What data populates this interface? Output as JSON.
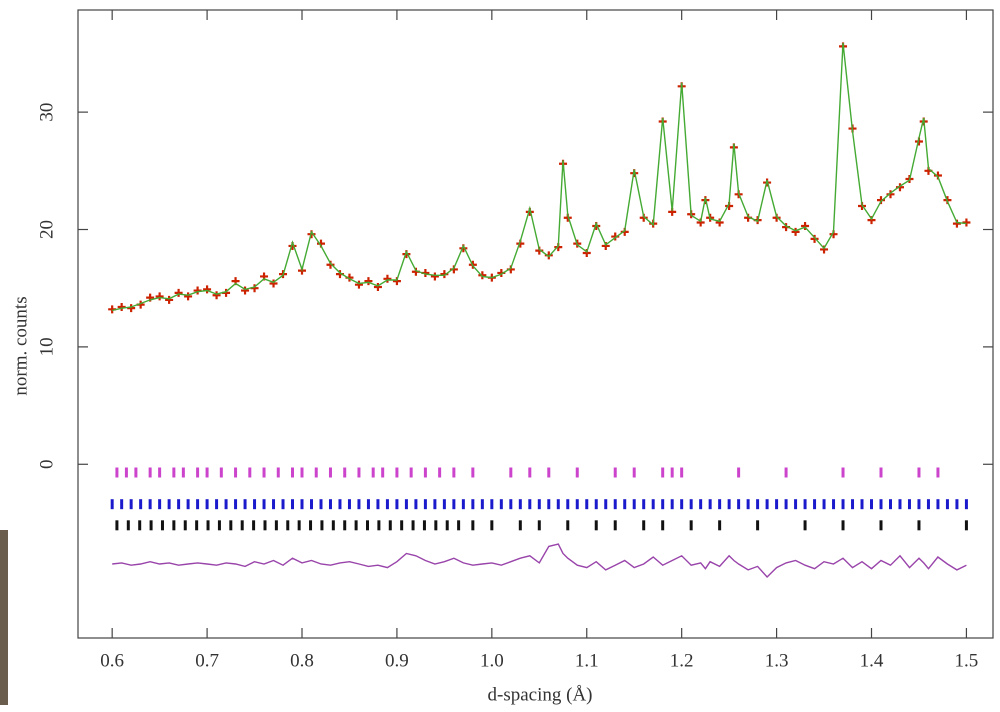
{
  "chart_data": {
    "type": "line",
    "x_label": "d-spacing (Å)",
    "y_label": "norm. counts",
    "xlim": [
      0.564,
      1.528
    ],
    "ylim": [
      -14.8,
      38.7
    ],
    "xticks": [
      0.6,
      0.7,
      0.8,
      0.9,
      {
        "value": 1,
        "label": "1.0"
      },
      1.1,
      1.2,
      1.3,
      1.4,
      1.5
    ],
    "yticks": [
      0,
      10,
      20,
      30
    ],
    "grid": false,
    "x": [
      0.6,
      0.61,
      0.62,
      0.63,
      0.64,
      0.65,
      0.66,
      0.67,
      0.68,
      0.69,
      0.7,
      0.71,
      0.72,
      0.73,
      0.74,
      0.75,
      0.76,
      0.77,
      0.78,
      0.79,
      0.8,
      0.81,
      0.82,
      0.83,
      0.84,
      0.85,
      0.86,
      0.87,
      0.88,
      0.89,
      0.9,
      0.91,
      0.92,
      0.93,
      0.94,
      0.95,
      0.96,
      0.97,
      0.98,
      0.99,
      1.0,
      1.01,
      1.02,
      1.03,
      1.04,
      1.05,
      1.06,
      1.07,
      1.075,
      1.08,
      1.09,
      1.1,
      1.11,
      1.12,
      1.13,
      1.14,
      1.15,
      1.16,
      1.17,
      1.18,
      1.19,
      1.2,
      1.21,
      1.22,
      1.225,
      1.23,
      1.24,
      1.25,
      1.255,
      1.26,
      1.27,
      1.28,
      1.29,
      1.3,
      1.31,
      1.32,
      1.33,
      1.34,
      1.35,
      1.36,
      1.37,
      1.38,
      1.39,
      1.4,
      1.41,
      1.42,
      1.43,
      1.44,
      1.45,
      1.455,
      1.46,
      1.47,
      1.48,
      1.49,
      1.5
    ],
    "series": [
      {
        "style": "points",
        "color": "#cc2200",
        "values": [
          13.2,
          13.4,
          13.3,
          13.6,
          14.2,
          14.3,
          14.0,
          14.6,
          14.3,
          14.8,
          14.9,
          14.4,
          14.6,
          15.6,
          14.8,
          15.0,
          16.0,
          15.4,
          16.2,
          18.6,
          16.5,
          19.6,
          18.8,
          17.0,
          16.2,
          15.9,
          15.3,
          15.6,
          15.1,
          15.8,
          15.6,
          17.9,
          16.4,
          16.3,
          16.0,
          16.2,
          16.6,
          18.4,
          17.0,
          16.1,
          15.9,
          16.3,
          16.6,
          18.8,
          21.5,
          18.2,
          17.8,
          18.5,
          25.6,
          21.0,
          18.8,
          18.0,
          20.3,
          18.6,
          19.4,
          19.8,
          24.8,
          21.0,
          20.5,
          29.2,
          21.5,
          32.2,
          21.3,
          20.6,
          22.5,
          21.0,
          20.6,
          22.0,
          27.0,
          23.0,
          21.0,
          20.8,
          24.0,
          21.0,
          20.2,
          19.8,
          20.3,
          19.2,
          18.3,
          19.6,
          35.6,
          28.6,
          22.0,
          20.8,
          22.5,
          23.0,
          23.6,
          24.3,
          27.5,
          29.2,
          25.0,
          24.6,
          22.5,
          20.5,
          20.6
        ]
      },
      {
        "style": "line",
        "color": "#44aa33",
        "values": [
          13.1,
          13.3,
          13.4,
          13.7,
          14.0,
          14.2,
          14.1,
          14.5,
          14.4,
          14.7,
          14.8,
          14.5,
          14.7,
          15.4,
          14.9,
          15.1,
          15.8,
          15.5,
          16.1,
          18.9,
          16.6,
          19.8,
          18.6,
          17.1,
          16.3,
          15.8,
          15.4,
          15.5,
          15.2,
          15.7,
          15.7,
          18.1,
          16.5,
          16.2,
          16.1,
          16.1,
          16.7,
          18.6,
          16.9,
          16.0,
          15.9,
          16.2,
          16.7,
          19.0,
          21.8,
          18.3,
          17.7,
          18.6,
          25.9,
          21.2,
          18.7,
          18.1,
          20.5,
          18.7,
          19.3,
          19.9,
          25.1,
          21.1,
          20.4,
          29.5,
          21.6,
          32.5,
          21.2,
          20.7,
          22.7,
          20.9,
          20.7,
          22.2,
          27.3,
          23.1,
          21.1,
          20.7,
          24.2,
          21.1,
          20.3,
          19.9,
          20.2,
          19.3,
          18.4,
          19.8,
          35.9,
          28.4,
          22.1,
          20.9,
          22.4,
          23.1,
          23.7,
          24.2,
          27.8,
          29.5,
          25.2,
          24.5,
          22.4,
          20.6,
          20.5
        ]
      },
      {
        "style": "line",
        "color": "#9944aa",
        "values": [
          -8.5,
          -8.4,
          -8.6,
          -8.5,
          -8.3,
          -8.5,
          -8.4,
          -8.6,
          -8.5,
          -8.4,
          -8.5,
          -8.6,
          -8.4,
          -8.5,
          -8.7,
          -8.3,
          -8.5,
          -8.2,
          -8.6,
          -8.0,
          -8.4,
          -8.2,
          -8.5,
          -8.6,
          -8.4,
          -8.3,
          -8.5,
          -8.7,
          -8.6,
          -8.8,
          -8.3,
          -7.6,
          -7.8,
          -8.2,
          -8.5,
          -8.3,
          -8.0,
          -8.4,
          -8.6,
          -8.5,
          -8.4,
          -8.6,
          -8.3,
          -8.0,
          -7.8,
          -8.4,
          -7.0,
          -6.8,
          -7.6,
          -8.0,
          -8.6,
          -8.8,
          -8.3,
          -9.0,
          -8.6,
          -8.2,
          -8.8,
          -8.5,
          -7.9,
          -8.6,
          -8.2,
          -7.8,
          -8.6,
          -8.4,
          -8.9,
          -8.3,
          -8.7,
          -7.8,
          -8.2,
          -8.5,
          -9.0,
          -8.7,
          -9.6,
          -8.8,
          -8.4,
          -8.2,
          -8.6,
          -8.9,
          -8.3,
          -8.5,
          -8.0,
          -8.8,
          -8.3,
          -8.9,
          -8.2,
          -8.6,
          -7.8,
          -8.8,
          -8.0,
          -8.4,
          -8.9,
          -7.9,
          -8.5,
          -9.0,
          -8.6
        ]
      }
    ],
    "reflections": [
      {
        "color": "#cc44cc",
        "y": -0.7,
        "x": [
          0.605,
          0.615,
          0.625,
          0.64,
          0.65,
          0.665,
          0.675,
          0.69,
          0.7,
          0.715,
          0.73,
          0.745,
          0.76,
          0.775,
          0.79,
          0.8,
          0.815,
          0.83,
          0.845,
          0.86,
          0.875,
          0.885,
          0.9,
          0.915,
          0.93,
          0.945,
          0.96,
          0.98,
          1.02,
          1.04,
          1.06,
          1.09,
          1.13,
          1.15,
          1.18,
          1.19,
          1.2,
          1.26,
          1.31,
          1.37,
          1.41,
          1.45,
          1.47
        ]
      },
      {
        "color": "#1a1acc",
        "y": -3.4,
        "x": [
          0.6,
          0.61,
          0.62,
          0.63,
          0.64,
          0.65,
          0.66,
          0.67,
          0.68,
          0.69,
          0.7,
          0.71,
          0.72,
          0.73,
          0.74,
          0.75,
          0.76,
          0.77,
          0.78,
          0.79,
          0.8,
          0.81,
          0.82,
          0.83,
          0.84,
          0.85,
          0.86,
          0.87,
          0.88,
          0.89,
          0.9,
          0.91,
          0.92,
          0.93,
          0.94,
          0.95,
          0.96,
          0.97,
          0.98,
          0.99,
          1.0,
          1.01,
          1.02,
          1.03,
          1.04,
          1.05,
          1.06,
          1.07,
          1.08,
          1.09,
          1.1,
          1.11,
          1.12,
          1.13,
          1.14,
          1.15,
          1.16,
          1.17,
          1.18,
          1.19,
          1.2,
          1.21,
          1.22,
          1.23,
          1.24,
          1.25,
          1.26,
          1.27,
          1.28,
          1.29,
          1.3,
          1.31,
          1.32,
          1.33,
          1.34,
          1.35,
          1.36,
          1.37,
          1.38,
          1.39,
          1.4,
          1.41,
          1.42,
          1.43,
          1.44,
          1.45,
          1.46,
          1.47,
          1.48,
          1.49,
          1.5
        ]
      },
      {
        "color": "#111111",
        "y": -5.2,
        "x": [
          0.605,
          0.617,
          0.629,
          0.641,
          0.653,
          0.665,
          0.677,
          0.689,
          0.701,
          0.713,
          0.725,
          0.737,
          0.749,
          0.761,
          0.773,
          0.785,
          0.797,
          0.809,
          0.821,
          0.833,
          0.845,
          0.857,
          0.869,
          0.881,
          0.893,
          0.905,
          0.917,
          0.929,
          0.941,
          0.953,
          0.965,
          0.98,
          1.0,
          1.03,
          1.05,
          1.08,
          1.11,
          1.13,
          1.16,
          1.18,
          1.21,
          1.24,
          1.28,
          1.33,
          1.37,
          1.41,
          1.45,
          1.5
        ]
      }
    ]
  }
}
